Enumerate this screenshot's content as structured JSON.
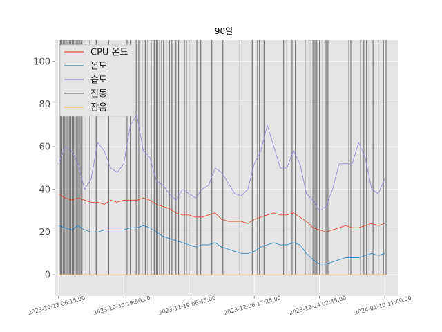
{
  "chart_data": {
    "type": "line",
    "title": "90일",
    "xlabel": "",
    "ylabel": "",
    "ylim": [
      -10,
      110
    ],
    "yticks": [
      0,
      20,
      40,
      60,
      80,
      100
    ],
    "xlim": [
      -0.05,
      5.2
    ],
    "x_tick_positions": [
      0,
      1,
      2,
      3,
      4,
      5
    ],
    "x_tick_labels": [
      "2023-10-13 06:15:00",
      "2023-10-30 19:50:00",
      "2023-11-19 06:45:00",
      "2023-12-06 17:25:00",
      "2023-12-24 02:45:00",
      "2024-01-10 11:40:00"
    ],
    "grid": true,
    "legend_position": "top-left",
    "series": [
      {
        "name": "CPU 온도",
        "color": "#E24A33",
        "x": [
          0,
          0.1,
          0.2,
          0.3,
          0.4,
          0.5,
          0.6,
          0.7,
          0.8,
          0.9,
          1.0,
          1.1,
          1.2,
          1.3,
          1.4,
          1.5,
          1.6,
          1.7,
          1.8,
          1.9,
          2.0,
          2.1,
          2.2,
          2.3,
          2.4,
          2.5,
          2.6,
          2.7,
          2.8,
          2.9,
          3.0,
          3.1,
          3.2,
          3.3,
          3.4,
          3.5,
          3.6,
          3.7,
          3.8,
          3.9,
          4.0,
          4.1,
          4.2,
          4.3,
          4.4,
          4.5,
          4.6,
          4.7,
          4.8,
          4.9,
          5.0
        ],
        "values": [
          38,
          36,
          35,
          36,
          35,
          34,
          34,
          33,
          35,
          34,
          35,
          35,
          35,
          36,
          35,
          33,
          32,
          31,
          29,
          28,
          28,
          27,
          27,
          28,
          29,
          26,
          25,
          25,
          25,
          24,
          26,
          27,
          28,
          29,
          28,
          28,
          29,
          27,
          25,
          22,
          21,
          20,
          21,
          22,
          23,
          22,
          22,
          23,
          24,
          23,
          24
        ]
      },
      {
        "name": "온도",
        "color": "#348ABD",
        "x": [
          0,
          0.1,
          0.2,
          0.3,
          0.4,
          0.5,
          0.6,
          0.7,
          0.8,
          0.9,
          1.0,
          1.1,
          1.2,
          1.3,
          1.4,
          1.5,
          1.6,
          1.7,
          1.8,
          1.9,
          2.0,
          2.1,
          2.2,
          2.3,
          2.4,
          2.5,
          2.6,
          2.7,
          2.8,
          2.9,
          3.0,
          3.1,
          3.2,
          3.3,
          3.4,
          3.5,
          3.6,
          3.7,
          3.8,
          3.9,
          4.0,
          4.1,
          4.2,
          4.3,
          4.4,
          4.5,
          4.6,
          4.7,
          4.8,
          4.9,
          5.0
        ],
        "values": [
          23,
          22,
          21,
          23,
          21,
          20,
          20,
          21,
          21,
          21,
          21,
          22,
          22,
          23,
          22,
          20,
          18,
          17,
          16,
          15,
          14,
          13,
          14,
          14,
          15,
          13,
          12,
          11,
          10,
          10,
          11,
          13,
          14,
          15,
          14,
          14,
          15,
          14,
          10,
          7,
          5,
          5,
          6,
          7,
          8,
          8,
          8,
          9,
          10,
          9,
          10
        ]
      },
      {
        "name": "습도",
        "color": "#988ED5",
        "x": [
          0,
          0.1,
          0.2,
          0.3,
          0.4,
          0.5,
          0.6,
          0.7,
          0.8,
          0.9,
          1.0,
          1.1,
          1.2,
          1.3,
          1.4,
          1.5,
          1.6,
          1.7,
          1.8,
          1.9,
          2.0,
          2.1,
          2.2,
          2.3,
          2.4,
          2.5,
          2.6,
          2.7,
          2.8,
          2.9,
          3.0,
          3.1,
          3.2,
          3.3,
          3.4,
          3.5,
          3.6,
          3.7,
          3.8,
          3.9,
          4.0,
          4.1,
          4.2,
          4.3,
          4.4,
          4.5,
          4.6,
          4.7,
          4.8,
          4.9,
          5.0
        ],
        "values": [
          52,
          60,
          58,
          52,
          40,
          45,
          62,
          58,
          50,
          48,
          52,
          70,
          75,
          58,
          55,
          44,
          42,
          38,
          35,
          40,
          38,
          36,
          40,
          42,
          50,
          48,
          43,
          38,
          37,
          40,
          52,
          58,
          70,
          60,
          50,
          50,
          58,
          52,
          38,
          35,
          30,
          32,
          40,
          52,
          52,
          52,
          62,
          55,
          40,
          38,
          45
        ]
      },
      {
        "name": "진동",
        "color": "#777777",
        "spikes": [
          0.01,
          0.03,
          0.05,
          0.07,
          0.09,
          0.11,
          0.13,
          0.15,
          0.17,
          0.19,
          0.21,
          0.23,
          0.25,
          0.27,
          0.29,
          0.31,
          0.33,
          0.36,
          0.42,
          0.48,
          0.56,
          0.58,
          0.77,
          1.05,
          1.1,
          1.19,
          1.23,
          1.28,
          1.33,
          1.37,
          1.42,
          1.45,
          1.47,
          1.5,
          1.52,
          1.55,
          1.58,
          1.61,
          1.65,
          1.7,
          1.73,
          1.75,
          1.8,
          1.84,
          1.93,
          1.96,
          2.0,
          2.12,
          2.18,
          2.35,
          2.52,
          2.78,
          2.97,
          3.05,
          3.08,
          3.12,
          3.15,
          3.45,
          3.5,
          3.58,
          3.63,
          3.78,
          3.84,
          3.87,
          3.9,
          3.93,
          3.96,
          4.0,
          4.05,
          4.1,
          4.13,
          4.45,
          4.48,
          4.63,
          4.68,
          4.72,
          4.76,
          4.82,
          4.9,
          4.98,
          5.02
        ],
        "baseline": 0,
        "peak": 110
      },
      {
        "name": "잡음",
        "color": "#FBC15E",
        "x": [
          0,
          5.02
        ],
        "values": [
          0,
          0
        ]
      }
    ]
  }
}
